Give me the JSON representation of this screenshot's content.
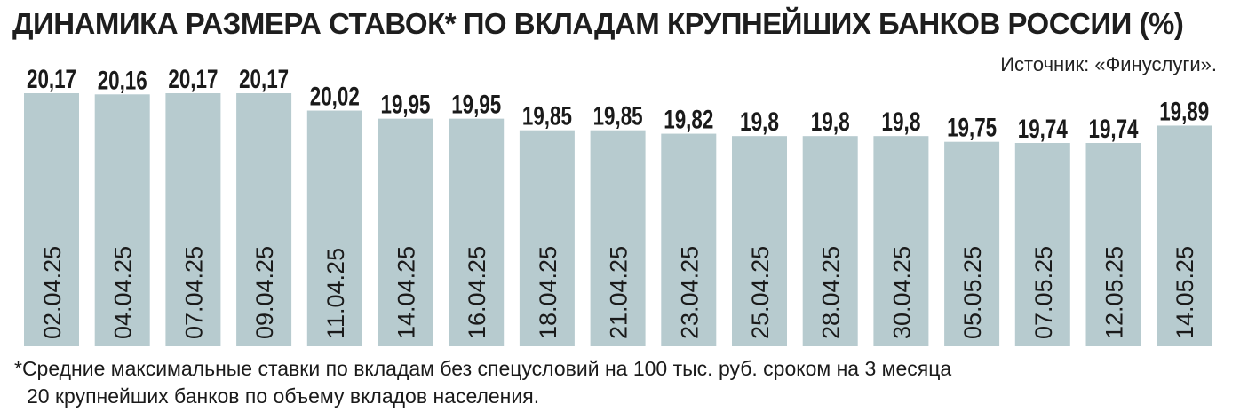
{
  "header": {
    "title": "ДИНАМИКА РАЗМЕРА СТАВОК* ПО ВКЛАДАМ КРУПНЕЙШИХ БАНКОВ РОССИИ (%)",
    "source": "Источник: «Финуслуги»."
  },
  "footnote": {
    "line1": "*Средние максимальные ставки по вкладам без спецусловий на 100 тыс. руб. сроком на 3 месяца",
    "line2": "20 крупнейших банков по объему вкладов населения."
  },
  "colors": {
    "bar": "#b7cbcf",
    "text": "#1a1a1a"
  },
  "chart_data": {
    "type": "bar",
    "title": "ДИНАМИКА РАЗМЕРА СТАВОК* ПО ВКЛАДАМ КРУПНЕЙШИХ БАНКОВ РОССИИ (%)",
    "categories": [
      "02.04.25",
      "04.04.25",
      "07.04.25",
      "09.04.25",
      "11.04.25",
      "14.04.25",
      "16.04.25",
      "18.04.25",
      "21.04.25",
      "23.04.25",
      "25.04.25",
      "28.04.25",
      "30.04.25",
      "05.05.25",
      "07.05.25",
      "12.05.25",
      "14.05.25"
    ],
    "values": [
      20.17,
      20.16,
      20.17,
      20.17,
      20.02,
      19.95,
      19.95,
      19.85,
      19.85,
      19.82,
      19.8,
      19.8,
      19.8,
      19.75,
      19.74,
      19.74,
      19.89
    ],
    "value_labels": [
      "20,17",
      "20,16",
      "20,17",
      "20,17",
      "20,02",
      "19,95",
      "19,95",
      "19,85",
      "19,85",
      "19,82",
      "19,8",
      "19,8",
      "19,8",
      "19,75",
      "19,74",
      "19,74",
      "19,89"
    ],
    "category_label_orientation": "vertical",
    "grid": false,
    "legend": "none",
    "xlabel": "",
    "ylabel": ""
  }
}
